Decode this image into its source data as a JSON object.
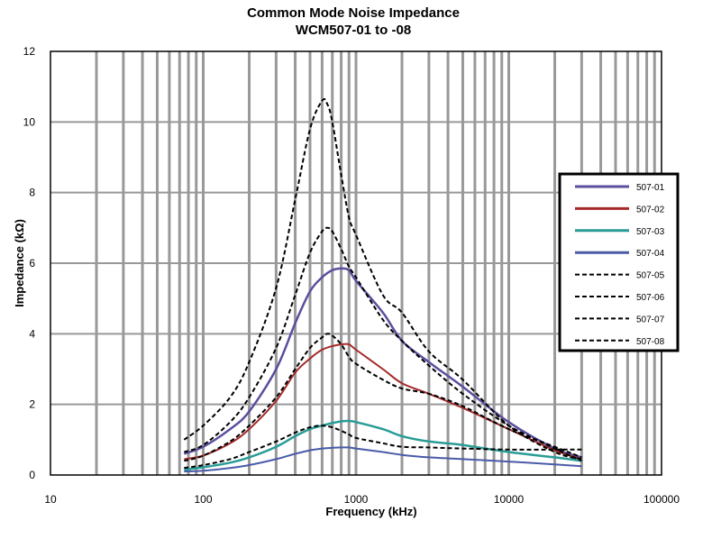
{
  "chart_data": {
    "type": "line",
    "title": "Common Mode Noise Impedance",
    "subtitle": "WCM507-01 to -08",
    "xlabel": "Frequency (kHz)",
    "ylabel": "Impedance (kΩ)",
    "x_scale": "log",
    "xlim": [
      10,
      100000
    ],
    "ylim": [
      0,
      12
    ],
    "x_ticks": [
      "10",
      "100",
      "1000",
      "10000",
      "100000"
    ],
    "y_ticks": [
      "0",
      "2",
      "4",
      "6",
      "8",
      "10",
      "12"
    ],
    "grid": true,
    "legend_position": "right",
    "series": [
      {
        "name": "507-01",
        "color": "#5b4f9e",
        "style": "solid",
        "width": 2.5,
        "points": [
          [
            75,
            0.6
          ],
          [
            100,
            0.8
          ],
          [
            150,
            1.3
          ],
          [
            200,
            1.8
          ],
          [
            300,
            3.0
          ],
          [
            400,
            4.3
          ],
          [
            500,
            5.2
          ],
          [
            600,
            5.6
          ],
          [
            700,
            5.8
          ],
          [
            800,
            5.85
          ],
          [
            900,
            5.8
          ],
          [
            1000,
            5.5
          ],
          [
            1500,
            4.6
          ],
          [
            2000,
            3.8
          ],
          [
            3000,
            3.2
          ],
          [
            5000,
            2.5
          ],
          [
            10000,
            1.5
          ],
          [
            20000,
            0.75
          ],
          [
            30000,
            0.5
          ]
        ]
      },
      {
        "name": "507-02",
        "color": "#a52a2a",
        "style": "solid",
        "width": 2,
        "points": [
          [
            75,
            0.45
          ],
          [
            100,
            0.55
          ],
          [
            150,
            0.9
          ],
          [
            200,
            1.3
          ],
          [
            300,
            2.1
          ],
          [
            400,
            2.9
          ],
          [
            500,
            3.3
          ],
          [
            600,
            3.55
          ],
          [
            700,
            3.65
          ],
          [
            800,
            3.7
          ],
          [
            900,
            3.7
          ],
          [
            1000,
            3.55
          ],
          [
            1500,
            3.0
          ],
          [
            2000,
            2.6
          ],
          [
            3000,
            2.3
          ],
          [
            5000,
            1.9
          ],
          [
            10000,
            1.3
          ],
          [
            20000,
            0.7
          ],
          [
            30000,
            0.45
          ]
        ]
      },
      {
        "name": "507-03",
        "color": "#2a9c96",
        "style": "solid",
        "width": 2.5,
        "points": [
          [
            75,
            0.15
          ],
          [
            100,
            0.22
          ],
          [
            150,
            0.35
          ],
          [
            200,
            0.5
          ],
          [
            300,
            0.8
          ],
          [
            400,
            1.1
          ],
          [
            500,
            1.3
          ],
          [
            600,
            1.4
          ],
          [
            700,
            1.47
          ],
          [
            800,
            1.52
          ],
          [
            900,
            1.53
          ],
          [
            1000,
            1.5
          ],
          [
            1500,
            1.3
          ],
          [
            2000,
            1.1
          ],
          [
            3000,
            0.95
          ],
          [
            5000,
            0.85
          ],
          [
            10000,
            0.65
          ],
          [
            20000,
            0.5
          ],
          [
            30000,
            0.4
          ]
        ]
      },
      {
        "name": "507-04",
        "color": "#4a5ba8",
        "style": "solid",
        "width": 2,
        "points": [
          [
            75,
            0.1
          ],
          [
            100,
            0.12
          ],
          [
            150,
            0.2
          ],
          [
            200,
            0.28
          ],
          [
            300,
            0.45
          ],
          [
            400,
            0.6
          ],
          [
            500,
            0.7
          ],
          [
            600,
            0.75
          ],
          [
            700,
            0.77
          ],
          [
            800,
            0.78
          ],
          [
            900,
            0.78
          ],
          [
            1000,
            0.75
          ],
          [
            1500,
            0.65
          ],
          [
            2000,
            0.57
          ],
          [
            3000,
            0.5
          ],
          [
            5000,
            0.45
          ],
          [
            10000,
            0.38
          ],
          [
            20000,
            0.3
          ],
          [
            30000,
            0.25
          ]
        ]
      },
      {
        "name": "507-05",
        "color": "#000000",
        "style": "dashed",
        "width": 2,
        "points": [
          [
            75,
            1.0
          ],
          [
            100,
            1.4
          ],
          [
            150,
            2.2
          ],
          [
            200,
            3.2
          ],
          [
            300,
            5.3
          ],
          [
            400,
            7.8
          ],
          [
            500,
            9.8
          ],
          [
            600,
            10.6
          ],
          [
            650,
            10.5
          ],
          [
            700,
            10.0
          ],
          [
            800,
            8.5
          ],
          [
            900,
            7.3
          ],
          [
            1000,
            6.8
          ],
          [
            1500,
            5.1
          ],
          [
            2000,
            4.6
          ],
          [
            3000,
            3.5
          ],
          [
            5000,
            2.7
          ],
          [
            10000,
            1.4
          ],
          [
            20000,
            0.65
          ],
          [
            30000,
            0.45
          ]
        ]
      },
      {
        "name": "507-06",
        "color": "#000000",
        "style": "dashed",
        "width": 2,
        "points": [
          [
            75,
            0.65
          ],
          [
            100,
            0.85
          ],
          [
            150,
            1.5
          ],
          [
            200,
            2.2
          ],
          [
            300,
            3.6
          ],
          [
            400,
            5.1
          ],
          [
            500,
            6.3
          ],
          [
            600,
            6.9
          ],
          [
            650,
            7.0
          ],
          [
            700,
            6.9
          ],
          [
            800,
            6.4
          ],
          [
            900,
            5.9
          ],
          [
            1000,
            5.6
          ],
          [
            1500,
            4.4
          ],
          [
            2000,
            3.8
          ],
          [
            3000,
            3.1
          ],
          [
            5000,
            2.3
          ],
          [
            10000,
            1.4
          ],
          [
            20000,
            0.75
          ],
          [
            30000,
            0.4
          ]
        ]
      },
      {
        "name": "507-07",
        "color": "#000000",
        "style": "dashed",
        "width": 2,
        "points": [
          [
            75,
            0.4
          ],
          [
            100,
            0.55
          ],
          [
            150,
            0.95
          ],
          [
            200,
            1.4
          ],
          [
            300,
            2.2
          ],
          [
            400,
            3.0
          ],
          [
            500,
            3.6
          ],
          [
            600,
            3.9
          ],
          [
            650,
            4.0
          ],
          [
            700,
            3.95
          ],
          [
            800,
            3.7
          ],
          [
            900,
            3.35
          ],
          [
            1000,
            3.15
          ],
          [
            1500,
            2.7
          ],
          [
            2000,
            2.45
          ],
          [
            3000,
            2.3
          ],
          [
            5000,
            1.95
          ],
          [
            10000,
            1.3
          ],
          [
            20000,
            0.8
          ],
          [
            30000,
            0.5
          ]
        ]
      },
      {
        "name": "507-08",
        "color": "#000000",
        "style": "dashed",
        "width": 2,
        "points": [
          [
            75,
            0.2
          ],
          [
            100,
            0.28
          ],
          [
            150,
            0.45
          ],
          [
            200,
            0.65
          ],
          [
            300,
            0.95
          ],
          [
            400,
            1.2
          ],
          [
            500,
            1.35
          ],
          [
            600,
            1.4
          ],
          [
            700,
            1.35
          ],
          [
            800,
            1.25
          ],
          [
            900,
            1.15
          ],
          [
            1000,
            1.05
          ],
          [
            1500,
            0.9
          ],
          [
            2000,
            0.8
          ],
          [
            3000,
            0.78
          ],
          [
            5000,
            0.75
          ],
          [
            10000,
            0.72
          ],
          [
            20000,
            0.72
          ],
          [
            30000,
            0.72
          ]
        ]
      }
    ]
  }
}
